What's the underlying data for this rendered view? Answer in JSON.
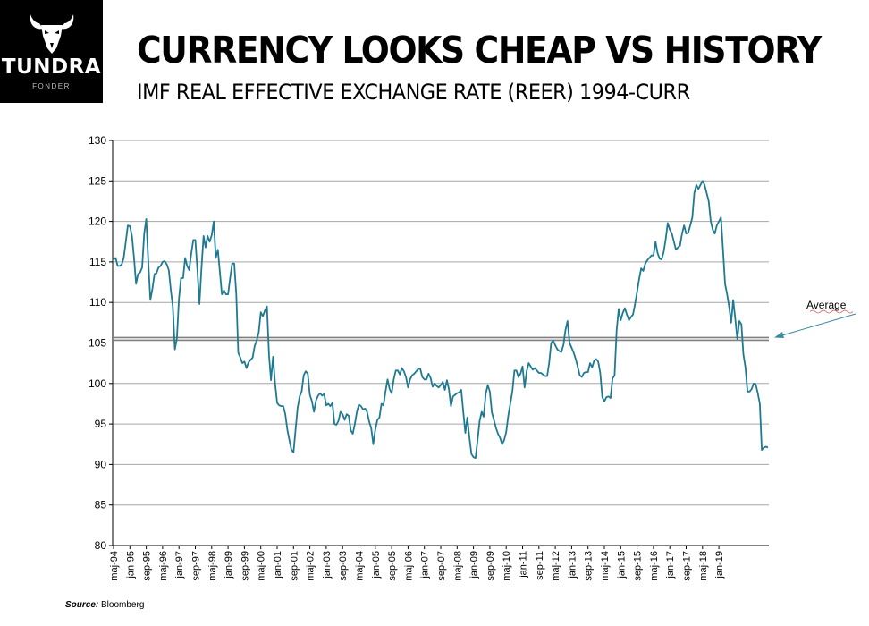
{
  "header": {
    "logo_name": "TUNDRA",
    "logo_sub": "FONDER",
    "title": "CURRENCY LOOKS CHEAP VS HISTORY",
    "subtitle": "IMF REAL EFFECTIVE EXCHANGE RATE (REER) 1994-CURR"
  },
  "footer": {
    "source_label": "Source:",
    "source_value": "Bloomberg"
  },
  "colors": {
    "series": "#1f7a91",
    "average_line": "#7f7f7f",
    "arrow": "#3a8aa0",
    "grid": "#a6a6a6",
    "logo_bg": "#000000"
  },
  "chart_data": {
    "type": "line",
    "title": "",
    "xlabel": "",
    "ylabel": "",
    "ylim": [
      80,
      130
    ],
    "yticks": [
      80,
      85,
      90,
      95,
      100,
      105,
      110,
      115,
      120,
      125,
      130
    ],
    "grid": true,
    "x_tick_labels": [
      "maj-94",
      "jan-95",
      "sep-95",
      "maj-96",
      "jan-97",
      "sep-97",
      "maj-98",
      "jan-99",
      "sep-99",
      "maj-00",
      "jan-01",
      "sep-01",
      "maj-02",
      "jan-03",
      "sep-03",
      "maj-04",
      "jan-05",
      "sep-05",
      "maj-06",
      "jan-07",
      "sep-07",
      "maj-08",
      "jan-09",
      "sep-09",
      "maj-10",
      "jan-11",
      "sep-11",
      "maj-12",
      "jan-13",
      "sep-13",
      "maj-14",
      "jan-15",
      "sep-15",
      "maj-16",
      "jan-17",
      "sep-17",
      "maj-18",
      "jan-19"
    ],
    "series": [
      {
        "values": [
          115.3,
          115.5,
          114.5,
          114.5,
          114.7,
          115.5,
          117.5,
          119.5,
          119.4,
          118.2,
          115.5,
          112.3,
          113.5,
          113.7,
          114.3,
          118.5,
          120.3,
          115,
          110.3,
          111.7,
          113.5,
          113.6,
          114.3,
          114.5,
          115,
          115.1,
          114.7,
          114,
          111.5,
          109.5,
          104.2,
          105.6,
          110.5,
          113,
          113,
          115.5,
          114.5,
          114,
          116,
          117.7,
          117.7,
          114,
          109.8,
          114.3,
          118.2,
          116.8,
          118.2,
          117.5,
          118.3,
          120,
          115.5,
          116.5,
          113.8,
          111,
          111.5,
          111,
          111,
          113,
          114.8,
          114.8,
          111,
          103.8,
          103.2,
          102.5,
          102.7,
          101.9,
          102.6,
          102.9,
          103.2,
          104.6,
          105.3,
          106.3,
          108.8,
          108.3,
          109,
          109.5,
          103.5,
          100.4,
          103.3,
          100,
          97.6,
          97.3,
          97.2,
          97.2,
          96.2,
          94.3,
          93,
          91.8,
          91.5,
          94.3,
          97,
          98.4,
          99,
          101,
          101.5,
          101.2,
          98.6,
          97.8,
          96.5,
          97.9,
          98.5,
          98.8,
          98.5,
          98.7,
          97.3,
          97.5,
          97.2,
          97.6,
          95,
          94.9,
          95.4,
          96.5,
          96.2,
          95.5,
          96.2,
          96,
          94.2,
          93.8,
          95,
          96.5,
          97.4,
          97.2,
          96.8,
          96.9,
          96.5,
          95.3,
          94.5,
          92.5,
          94.3,
          95.5,
          95.8,
          97.5,
          97.3,
          99,
          100.5,
          99.3,
          98.8,
          100.5,
          101.6,
          101.6,
          101.1,
          101.9,
          101.5,
          100.8,
          99.5,
          100.5,
          101,
          101.2,
          101.5,
          101.8,
          101.8,
          100.8,
          100.5,
          100.5,
          101.2,
          100.7,
          99.6,
          100,
          99.7,
          99.5,
          99.8,
          100.2,
          99.2,
          100.4,
          99.3,
          97.2,
          98.4,
          98.6,
          98.8,
          98.9,
          99.2,
          96.5,
          93.9,
          95.8,
          93.4,
          91.3,
          90.9,
          90.8,
          93,
          95.4,
          96.5,
          95.9,
          98.7,
          99.8,
          99,
          96.4,
          95.5,
          94.5,
          93.8,
          93.3,
          92.5,
          93,
          94,
          96,
          97.5,
          99,
          101.6,
          101.6,
          100.8,
          101.2,
          102.1,
          99.5,
          101.5,
          102.5,
          102.1,
          101.7,
          101.9,
          101.6,
          101.3,
          101.3,
          101.1,
          100.9,
          100.9,
          102.5,
          105,
          105.3,
          104.7,
          104.2,
          104,
          103.9,
          104.8,
          106.6,
          107.7,
          105,
          104.4,
          103.8,
          103,
          102,
          101,
          100.8,
          101.3,
          101.4,
          101.4,
          102.5,
          102,
          102.8,
          103,
          102.7,
          101.3,
          98.3,
          97.8,
          98.3,
          98.4,
          98.2,
          100.6,
          101,
          106.5,
          109.2,
          107.8,
          108.7,
          109.3,
          108.5,
          107.8,
          108.2,
          108.5,
          109.8,
          111.3,
          112.9,
          114.2,
          113.9,
          114.8,
          115.2,
          115.5,
          115.8,
          115.8,
          117.5,
          116.1,
          115.4,
          115.3,
          116.2,
          117.8,
          119.8,
          119,
          118.5,
          117.5,
          116.5,
          116.8,
          117,
          118.5,
          119.5,
          118.5,
          118.6,
          119.5,
          120.5,
          123.5,
          124.5,
          124,
          124.5,
          125,
          124.5,
          123.5,
          122.5,
          120,
          119,
          118.5,
          119.5,
          120,
          120.5,
          116.5,
          112.3,
          111,
          109.5,
          107.5,
          110.3,
          108,
          105.5,
          107.7,
          107.3,
          103.6,
          102,
          99,
          99,
          99.3,
          100,
          99.9,
          98.8,
          97.5,
          91.8,
          92.1,
          92.2,
          92.1
        ]
      }
    ],
    "average": 105.5,
    "annotation": "Average"
  }
}
